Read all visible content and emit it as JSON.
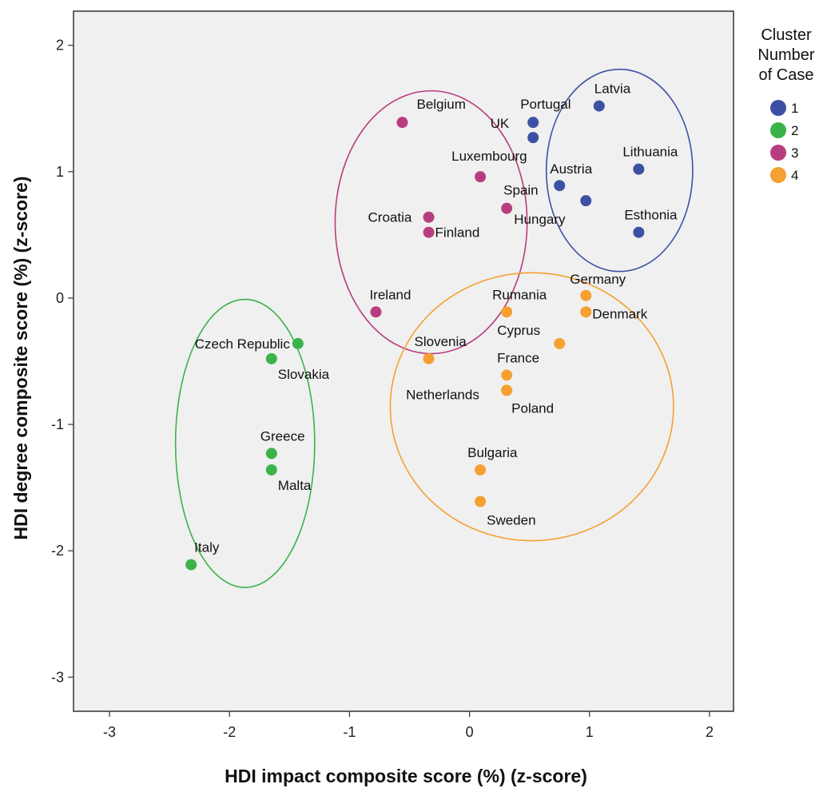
{
  "chart_data": {
    "type": "scatter",
    "xlabel": "HDI impact composite score (%) (z-score)",
    "ylabel": "HDI degree composite score (%) (z-score)",
    "xlim": [
      -3.3,
      2.2
    ],
    "ylim": [
      -3.27,
      2.27
    ],
    "xticks": [
      "-3",
      "-2",
      "-1",
      "0",
      "1",
      "2"
    ],
    "yticks": [
      "-3",
      "-2",
      "-1",
      "0",
      "1",
      "2"
    ],
    "grid": false,
    "legend": {
      "title": [
        "Cluster",
        "Number",
        "of Case"
      ],
      "placement": "right",
      "entries": [
        {
          "label": "1",
          "color": "#3c51a3"
        },
        {
          "label": "2",
          "color": "#3cb34a"
        },
        {
          "label": "3",
          "color": "#b83d80"
        },
        {
          "label": "4",
          "color": "#f5a031"
        }
      ]
    },
    "series": [
      {
        "name": "1",
        "color": "#3c51a3",
        "points": [
          {
            "label": "Latvia",
            "x": 1.08,
            "y": 1.52
          },
          {
            "label": "Portugal",
            "x": 0.53,
            "y": 1.39
          },
          {
            "label": "UK",
            "x": 0.53,
            "y": 1.27
          },
          {
            "label": "Lithuania",
            "x": 1.41,
            "y": 1.02
          },
          {
            "label": "Austria",
            "x": 0.75,
            "y": 0.89
          },
          {
            "label": "Hungary",
            "x": 0.97,
            "y": 0.77
          },
          {
            "label": "Esthonia",
            "x": 1.41,
            "y": 0.52
          }
        ]
      },
      {
        "name": "2",
        "color": "#3cb34a",
        "points": [
          {
            "label": "Czech Republic",
            "x": -1.43,
            "y": -0.36
          },
          {
            "label": "Slovakia",
            "x": -1.65,
            "y": -0.48
          },
          {
            "label": "Greece",
            "x": -1.65,
            "y": -1.23
          },
          {
            "label": "Malta",
            "x": -1.65,
            "y": -1.36
          },
          {
            "label": "Italy",
            "x": -2.32,
            "y": -2.11
          }
        ]
      },
      {
        "name": "3",
        "color": "#b83d80",
        "points": [
          {
            "label": "Belgium",
            "x": -0.56,
            "y": 1.39
          },
          {
            "label": "Luxembourg",
            "x": 0.09,
            "y": 0.96
          },
          {
            "label": "Spain",
            "x": 0.31,
            "y": 0.71
          },
          {
            "label": "Croatia",
            "x": -0.34,
            "y": 0.64
          },
          {
            "label": "Finland",
            "x": -0.34,
            "y": 0.52
          },
          {
            "label": "Ireland",
            "x": -0.78,
            "y": -0.11
          }
        ]
      },
      {
        "name": "4",
        "color": "#f5a031",
        "points": [
          {
            "label": "Germany",
            "x": 0.97,
            "y": 0.02
          },
          {
            "label": "Rumania",
            "x": 0.31,
            "y": -0.11
          },
          {
            "label": "Denmark",
            "x": 0.97,
            "y": -0.11
          },
          {
            "label": "Cyprus",
            "x": 0.75,
            "y": -0.36
          },
          {
            "label": "Slovenia",
            "x": -0.34,
            "y": -0.48
          },
          {
            "label": "France",
            "x": 0.31,
            "y": -0.61
          },
          {
            "label": "Netherlands",
            "x": 0.31,
            "y": -0.73
          },
          {
            "label": "Poland",
            "x": 0.31,
            "y": -0.73
          },
          {
            "label": "Bulgaria",
            "x": 0.09,
            "y": -1.36
          },
          {
            "label": "Sweden",
            "x": 0.09,
            "y": -1.61
          }
        ]
      }
    ],
    "ellipses": [
      {
        "cluster": "1",
        "color": "#3c51a3",
        "cx": 1.25,
        "cy": 1.01,
        "rx": 0.61,
        "ry": 0.8
      },
      {
        "cluster": "2",
        "color": "#3cb34a",
        "cx": -1.87,
        "cy": -1.15,
        "rx": 0.58,
        "ry": 1.14
      },
      {
        "cluster": "3",
        "color": "#b83d80",
        "cx": -0.32,
        "cy": 0.6,
        "rx": 0.8,
        "ry": 1.04
      },
      {
        "cluster": "4",
        "color": "#f5a031",
        "cx": 0.52,
        "cy": -0.86,
        "rx": 1.18,
        "ry": 1.06
      }
    ]
  }
}
